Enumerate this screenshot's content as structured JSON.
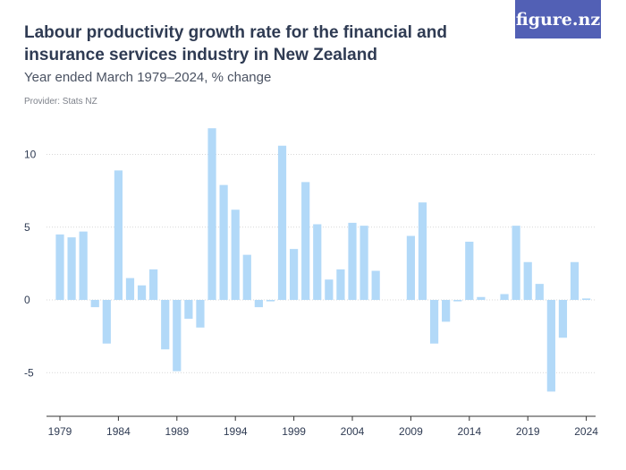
{
  "header": {
    "title": "Labour productivity growth rate for the financial and insurance services industry in New Zealand",
    "subtitle": "Year ended March 1979–2024, % change",
    "provider": "Provider: Stats NZ",
    "logo": "figure.nz"
  },
  "colors": {
    "bar": "#b2d9f8",
    "axis": "#333333",
    "grid": "#cccccc",
    "logo_bg": "#5260b5"
  },
  "chart_data": {
    "type": "bar",
    "title": "Labour productivity growth rate for the financial and insurance services industry in New Zealand",
    "subtitle": "Year ended March 1979–2024, % change",
    "xlabel": "",
    "ylabel": "",
    "ylim": [
      -8,
      12
    ],
    "y_ticks": [
      10,
      5,
      0,
      -5
    ],
    "y_tick_labels": [
      "10",
      "5",
      "0",
      "-5"
    ],
    "x_ticks": [
      1979,
      1984,
      1989,
      1994,
      1999,
      2004,
      2009,
      2014,
      2019,
      2024
    ],
    "x_tick_labels": [
      "1979",
      "1984",
      "1989",
      "1994",
      "1999",
      "2004",
      "2009",
      "2014",
      "2019",
      "2024"
    ],
    "grid": "horizontal",
    "categories": [
      1979,
      1980,
      1981,
      1982,
      1983,
      1984,
      1985,
      1986,
      1987,
      1988,
      1989,
      1990,
      1991,
      1992,
      1993,
      1994,
      1995,
      1996,
      1997,
      1998,
      1999,
      2000,
      2001,
      2002,
      2003,
      2004,
      2005,
      2006,
      2007,
      2008,
      2009,
      2010,
      2011,
      2012,
      2013,
      2014,
      2015,
      2016,
      2017,
      2018,
      2019,
      2020,
      2021,
      2022,
      2023,
      2024
    ],
    "values": [
      4.5,
      4.3,
      4.7,
      -0.5,
      -3.0,
      8.9,
      1.5,
      1.0,
      2.1,
      -3.4,
      -4.9,
      -1.3,
      -1.9,
      11.8,
      7.9,
      6.2,
      3.1,
      -0.5,
      -0.1,
      10.6,
      3.5,
      8.1,
      5.2,
      1.4,
      2.1,
      5.3,
      5.1,
      2.0,
      0,
      0,
      4.4,
      6.7,
      -3.0,
      -1.5,
      -0.1,
      4.0,
      0.2,
      0,
      0.4,
      5.1,
      2.6,
      1.1,
      -6.3,
      -2.6,
      2.6,
      0.1
    ]
  }
}
